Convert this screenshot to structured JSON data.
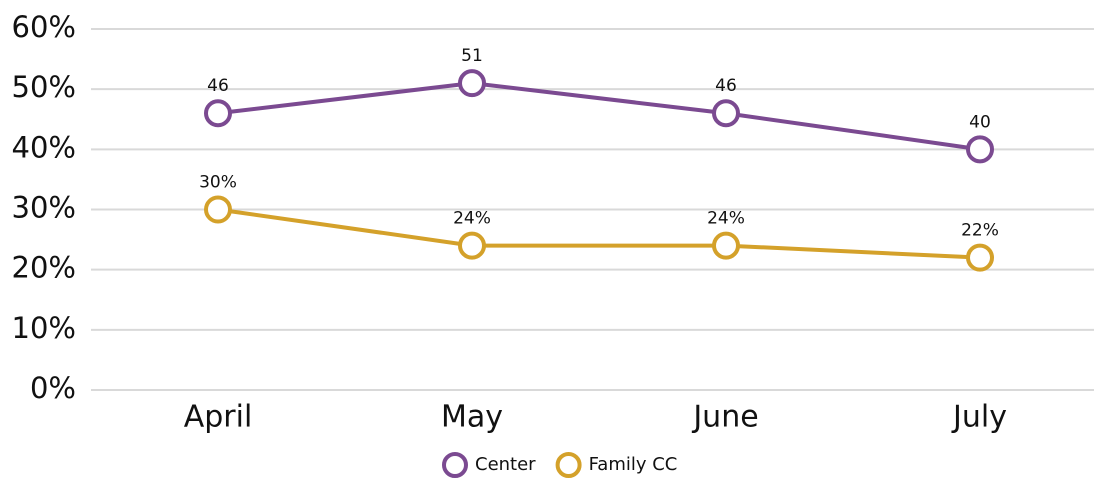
{
  "chart_data": {
    "type": "line",
    "categories": [
      "April",
      "May",
      "June",
      "July"
    ],
    "series": [
      {
        "name": "Center",
        "color": "#7b4a91",
        "values": [
          46,
          51,
          46,
          40
        ]
      },
      {
        "name": "Family CC",
        "color": "#d4a12a",
        "values": [
          30,
          24,
          24,
          22
        ],
        "value_labels": [
          "30%",
          "24%",
          "24%",
          "22%"
        ]
      }
    ],
    "ylim": [
      0,
      60
    ],
    "yticks": [
      {
        "value": 0,
        "label": "0%"
      },
      {
        "value": 10,
        "label": "10%"
      },
      {
        "value": 20,
        "label": "20%"
      },
      {
        "value": 30,
        "label": "30%"
      },
      {
        "value": 40,
        "label": "40%"
      },
      {
        "value": 50,
        "label": "50%"
      },
      {
        "value": 60,
        "label": "60%"
      }
    ],
    "grid": true
  }
}
